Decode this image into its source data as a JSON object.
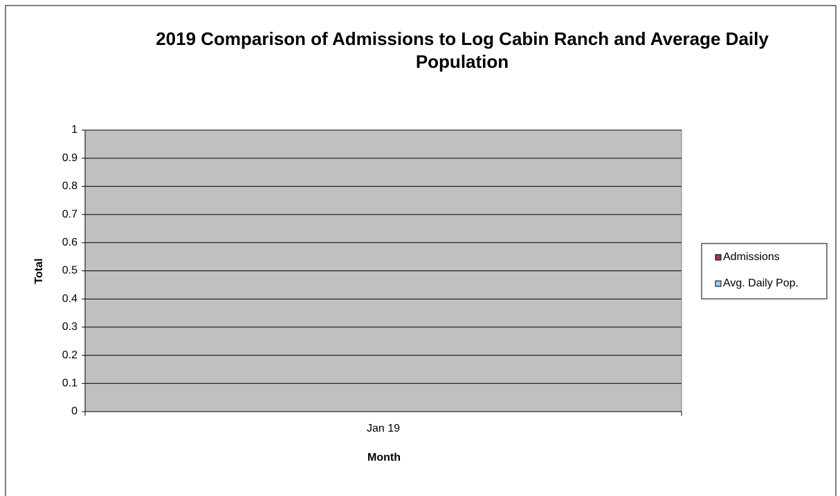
{
  "chart_data": {
    "type": "bar",
    "title": "2019 Comparison of Admissions to Log Cabin Ranch and Average Daily Population",
    "xlabel": "Month",
    "ylabel": "Total",
    "categories": [
      "Jan 19"
    ],
    "series": [
      {
        "name": "Admissions",
        "color": "#993366",
        "values": [
          null
        ]
      },
      {
        "name": "Avg. Daily Pop.",
        "color": "#99ccff",
        "values": [
          null
        ]
      }
    ],
    "ylim": [
      0,
      1
    ],
    "yticks": [
      0,
      0.1,
      0.2,
      0.3,
      0.4,
      0.5,
      0.6,
      0.7,
      0.8,
      0.9,
      1
    ],
    "grid": true,
    "legend": "right"
  }
}
